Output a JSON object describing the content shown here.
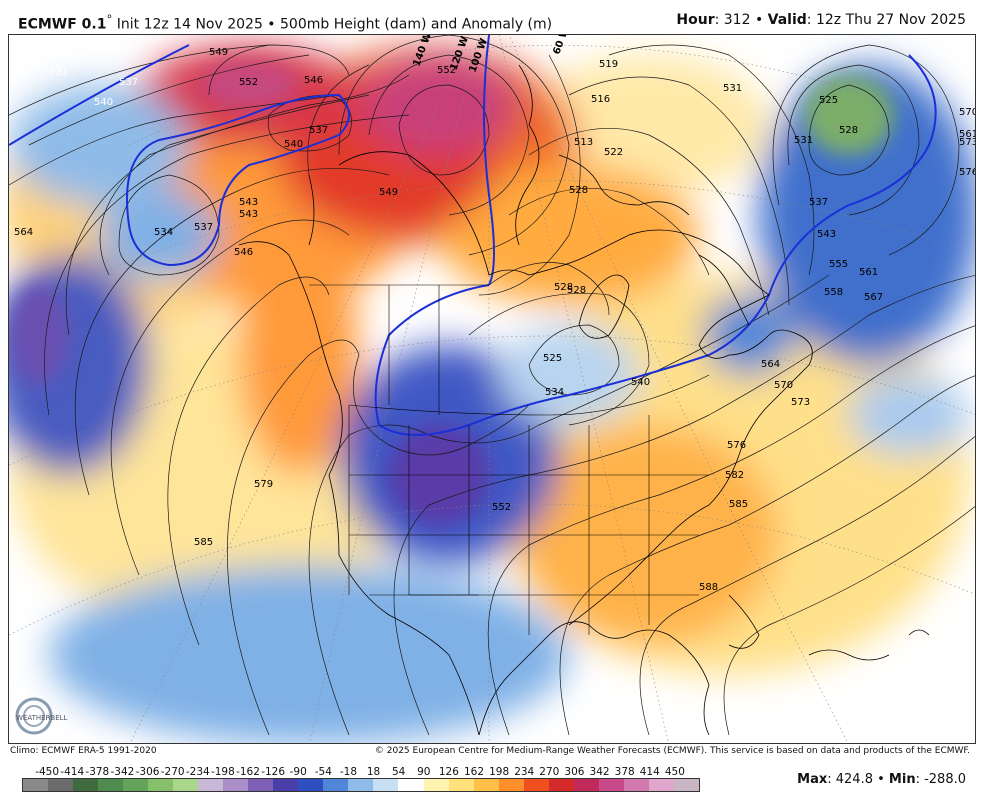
{
  "header": {
    "model": "ECMWF 0.1",
    "degree": "°",
    "desc": "Init 12z 14 Nov 2025 • 500mb Height (dam) and Anomaly (m)",
    "hour_label": "Hour",
    "hour_value": ": 312 • ",
    "valid_label": "Valid",
    "valid_value": ": 12z Thu 27 Nov 2025"
  },
  "footer": {
    "climo": "Climo: ECMWF ERA-5 1991-2020",
    "copyright": "© 2025 European Centre for Medium-Range Weather Forecasts (ECMWF). This service is based on data and products of the ECMWF."
  },
  "colorbar": {
    "labels": [
      "-450",
      "-414",
      "-378",
      "-342",
      "-306",
      "-270",
      "-234",
      "-198",
      "-162",
      "-126",
      "-90",
      "-54",
      "-18",
      "18",
      "54",
      "90",
      "126",
      "162",
      "198",
      "234",
      "270",
      "306",
      "342",
      "378",
      "414",
      "450"
    ],
    "colors": [
      "#8a8a8a",
      "#6b6b6b",
      "#3f6b3f",
      "#4f8a4f",
      "#63a35c",
      "#86c06a",
      "#a9d68a",
      "#c8b8d8",
      "#a98ec8",
      "#7d5fb5",
      "#4a3fa8",
      "#2f4fc0",
      "#4f86d8",
      "#8fbbe8",
      "#c8def3",
      "#ffffff",
      "#fff3b0",
      "#ffe07a",
      "#ffc04a",
      "#ff8f2a",
      "#f05020",
      "#d42a2a",
      "#c02a5a",
      "#c84a8a",
      "#d27ab0",
      "#e0a6cc",
      "#c9b7c5"
    ],
    "max_label": "Max",
    "max_value": ": 424.8 • ",
    "min_label": "Min",
    "min_value": ": -288.0"
  },
  "contour_labels": [
    "531",
    "537",
    "540",
    "543",
    "549",
    "552",
    "546",
    "537",
    "540",
    "534",
    "537",
    "543",
    "546",
    "564",
    "561",
    "519",
    "516",
    "513",
    "522",
    "528",
    "531",
    "525",
    "528",
    "531",
    "537",
    "543",
    "555",
    "558",
    "561",
    "567",
    "549",
    "552",
    "528",
    "525",
    "534",
    "540",
    "564",
    "570",
    "573",
    "576",
    "582",
    "585",
    "588",
    "579",
    "585",
    "552",
    "570",
    "573",
    "576",
    "528"
  ],
  "longitude_labels": [
    "140 W",
    "120 W",
    "100 W",
    "60 W"
  ],
  "logo": {
    "text": "WEATHERBELL"
  }
}
